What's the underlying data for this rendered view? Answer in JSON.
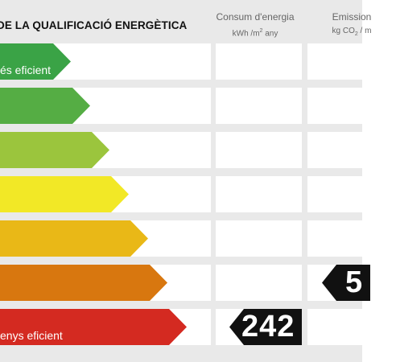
{
  "header": {
    "title": "DE LA QUALIFICACIÓ ENERGÈTICA",
    "col1_title": "Consum d'energia",
    "col1_unit_a": "kWh /m",
    "col1_unit_sup": "2",
    "col1_unit_b": " any",
    "col2_title": "Emission",
    "col2_unit_a": "kg CO",
    "col2_unit_sub": "2",
    "col2_unit_b": " / m"
  },
  "ratings": [
    {
      "label": "és eficient",
      "color": "#3aa346"
    },
    {
      "label": "",
      "color": "#55ad44"
    },
    {
      "label": "",
      "color": "#9bc53d"
    },
    {
      "label": "",
      "color": "#f2e826"
    },
    {
      "label": "",
      "color": "#e9b817"
    },
    {
      "label": "",
      "color": "#d8770f"
    },
    {
      "label": "enys eficient",
      "color": "#d42a21"
    }
  ],
  "consumption": {
    "value": "242",
    "rating_index": 6
  },
  "emissions": {
    "value": "5",
    "rating_index": 5
  }
}
